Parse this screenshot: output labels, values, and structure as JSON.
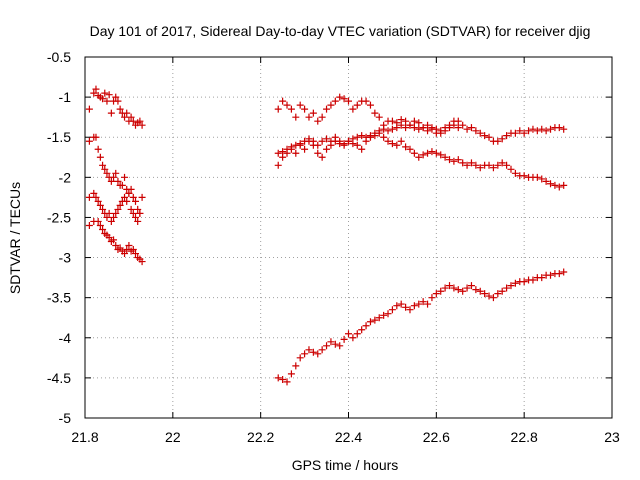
{
  "chart_data": {
    "type": "scatter",
    "title": "Day 101 of 2017, Sidereal Day-to-day VTEC variation (SDTVAR) for receiver djig",
    "xlabel": "GPS time / hours",
    "ylabel": "SDTVAR / TECUs",
    "xlim": [
      21.8,
      23
    ],
    "ylim": [
      -5,
      -0.5
    ],
    "xticks": [
      "21.8",
      "22",
      "22.2",
      "22.4",
      "22.6",
      "22.8",
      "23"
    ],
    "yticks": [
      "-0.5",
      "-1",
      "-1.5",
      "-2",
      "-2.5",
      "-3",
      "-3.5",
      "-4",
      "-4.5",
      "-5"
    ],
    "grid": true,
    "marker": "+",
    "color": "#cc0000",
    "series": [
      {
        "x": [
          21.81,
          21.82,
          21.825,
          21.83,
          21.835,
          21.84,
          21.845,
          21.85,
          21.855,
          21.86,
          21.865,
          21.87,
          21.875,
          21.88,
          21.885,
          21.89,
          21.895,
          21.9,
          21.905,
          21.91,
          21.915,
          21.92,
          21.925,
          21.93
        ],
        "y": [
          -1.15,
          -0.95,
          -0.9,
          -0.98,
          -1.0,
          -1.02,
          -0.95,
          -1.05,
          -0.97,
          -1.2,
          -1.05,
          -1.0,
          -1.05,
          -1.15,
          -1.2,
          -1.25,
          -1.2,
          -1.3,
          -1.25,
          -1.3,
          -1.35,
          -1.32,
          -1.3,
          -1.35
        ]
      },
      {
        "x": [
          21.81,
          21.82,
          21.825,
          21.83,
          21.835,
          21.84,
          21.845,
          21.85,
          21.855,
          21.86,
          21.865,
          21.87,
          21.875,
          21.88,
          21.885,
          21.89,
          21.895,
          21.9,
          21.905,
          21.91,
          21.915,
          21.92,
          21.925,
          21.93
        ],
        "y": [
          -1.55,
          -1.5,
          -1.5,
          -1.65,
          -1.75,
          -1.85,
          -1.9,
          -1.95,
          -2.0,
          -2.05,
          -2.0,
          -1.95,
          -2.05,
          -2.1,
          -2.1,
          -2.0,
          -2.15,
          -2.2,
          -2.15,
          -2.25,
          -2.3,
          -2.4,
          -2.45,
          -2.25
        ]
      },
      {
        "x": [
          21.81,
          21.82,
          21.825,
          21.83,
          21.835,
          21.84,
          21.845,
          21.85,
          21.855,
          21.86,
          21.865,
          21.87,
          21.875,
          21.88,
          21.885,
          21.89,
          21.895,
          21.9,
          21.905,
          21.91,
          21.915,
          21.92,
          21.925
        ],
        "y": [
          -2.25,
          -2.2,
          -2.25,
          -2.3,
          -2.35,
          -2.4,
          -2.45,
          -2.5,
          -2.45,
          -2.55,
          -2.5,
          -2.45,
          -2.4,
          -2.35,
          -2.3,
          -2.25,
          -2.3,
          -2.2,
          -2.4,
          -2.45,
          -2.5,
          -2.55,
          -2.45
        ]
      },
      {
        "x": [
          21.81,
          21.82,
          21.83,
          21.835,
          21.84,
          21.845,
          21.85,
          21.855,
          21.86,
          21.865,
          21.87,
          21.875,
          21.88,
          21.885,
          21.89,
          21.895,
          21.9,
          21.905,
          21.91,
          21.915,
          21.92,
          21.925,
          21.93
        ],
        "y": [
          -2.6,
          -2.55,
          -2.55,
          -2.6,
          -2.65,
          -2.7,
          -2.72,
          -2.75,
          -2.8,
          -2.78,
          -2.85,
          -2.9,
          -2.88,
          -2.92,
          -2.95,
          -2.9,
          -2.85,
          -2.92,
          -2.9,
          -2.95,
          -3.0,
          -3.02,
          -3.05
        ]
      },
      {
        "x": [
          22.24,
          22.25,
          22.26,
          22.27,
          22.28,
          22.29,
          22.3,
          22.31,
          22.32,
          22.33,
          22.34,
          22.35,
          22.36,
          22.37,
          22.38,
          22.39,
          22.4,
          22.41,
          22.42,
          22.43,
          22.44,
          22.45,
          22.46,
          22.47,
          22.48,
          22.49,
          22.5,
          22.51,
          22.52,
          22.53,
          22.54,
          22.55,
          22.56,
          22.57,
          22.58,
          22.59,
          22.6,
          22.61,
          22.62,
          22.63,
          22.64,
          22.65,
          22.66,
          22.67,
          22.68,
          22.69,
          22.7,
          22.71,
          22.72,
          22.73,
          22.74,
          22.75,
          22.76,
          22.77,
          22.78,
          22.79,
          22.8,
          22.81,
          22.82,
          22.83,
          22.84,
          22.85,
          22.86,
          22.87,
          22.88,
          22.89
        ],
        "y": [
          -1.15,
          -1.05,
          -1.1,
          -1.15,
          -1.25,
          -1.1,
          -1.15,
          -1.25,
          -1.2,
          -1.3,
          -1.25,
          -1.15,
          -1.1,
          -1.05,
          -1.0,
          -1.02,
          -1.05,
          -1.15,
          -1.1,
          -1.05,
          -1.05,
          -1.1,
          -1.2,
          -1.25,
          -1.35,
          -1.3,
          -1.3,
          -1.32,
          -1.28,
          -1.3,
          -1.35,
          -1.3,
          -1.32,
          -1.38,
          -1.42,
          -1.4,
          -1.45,
          -1.45,
          -1.42,
          -1.38,
          -1.3,
          -1.3,
          -1.35,
          -1.4,
          -1.38,
          -1.42,
          -1.45,
          -1.48,
          -1.5,
          -1.55,
          -1.55,
          -1.52,
          -1.48,
          -1.45,
          -1.45,
          -1.42,
          -1.45,
          -1.42,
          -1.4,
          -1.42,
          -1.4,
          -1.42,
          -1.4,
          -1.38,
          -1.38,
          -1.4
        ]
      },
      {
        "x": [
          22.24,
          22.25,
          22.26,
          22.27,
          22.28,
          22.29,
          22.3,
          22.31,
          22.32,
          22.33,
          22.34,
          22.35,
          22.36,
          22.37,
          22.38,
          22.39,
          22.4,
          22.41,
          22.42,
          22.43,
          22.44,
          22.45,
          22.46,
          22.47,
          22.48,
          22.49,
          22.5,
          22.51,
          22.52,
          22.53,
          22.54,
          22.55,
          22.56,
          22.57,
          22.58,
          22.59,
          22.6,
          22.61,
          22.62,
          22.63,
          22.64,
          22.65
        ],
        "y": [
          -1.7,
          -1.68,
          -1.65,
          -1.62,
          -1.6,
          -1.58,
          -1.55,
          -1.52,
          -1.55,
          -1.6,
          -1.55,
          -1.52,
          -1.55,
          -1.5,
          -1.55,
          -1.58,
          -1.55,
          -1.52,
          -1.5,
          -1.48,
          -1.5,
          -1.48,
          -1.45,
          -1.42,
          -1.4,
          -1.42,
          -1.4,
          -1.38,
          -1.35,
          -1.38,
          -1.35,
          -1.38,
          -1.4,
          -1.38,
          -1.35,
          -1.38,
          -1.4,
          -1.42,
          -1.38,
          -1.35,
          -1.35,
          -1.38
        ]
      },
      {
        "x": [
          22.24,
          22.25,
          22.26,
          22.27,
          22.28,
          22.29,
          22.3,
          22.31,
          22.32,
          22.33,
          22.34,
          22.35,
          22.36,
          22.37,
          22.38,
          22.39,
          22.4,
          22.41,
          22.42,
          22.43,
          22.44,
          22.45,
          22.46,
          22.47,
          22.48,
          22.49,
          22.5,
          22.51,
          22.52,
          22.53,
          22.54,
          22.55,
          22.56,
          22.57,
          22.58,
          22.59,
          22.6,
          22.61,
          22.62,
          22.63,
          22.64,
          22.65,
          22.66,
          22.67,
          22.68,
          22.69,
          22.7,
          22.71,
          22.72,
          22.73,
          22.74,
          22.75,
          22.76,
          22.77,
          22.78,
          22.79,
          22.8,
          22.81,
          22.82,
          22.83,
          22.84,
          22.85,
          22.86,
          22.87,
          22.88,
          22.89
        ],
        "y": [
          -1.85,
          -1.75,
          -1.7,
          -1.65,
          -1.7,
          -1.6,
          -1.65,
          -1.55,
          -1.6,
          -1.7,
          -1.75,
          -1.65,
          -1.6,
          -1.55,
          -1.58,
          -1.6,
          -1.55,
          -1.58,
          -1.6,
          -1.65,
          -1.55,
          -1.5,
          -1.48,
          -1.45,
          -1.5,
          -1.55,
          -1.58,
          -1.6,
          -1.55,
          -1.62,
          -1.65,
          -1.7,
          -1.75,
          -1.72,
          -1.7,
          -1.68,
          -1.7,
          -1.72,
          -1.75,
          -1.78,
          -1.8,
          -1.78,
          -1.82,
          -1.85,
          -1.82,
          -1.85,
          -1.88,
          -1.85,
          -1.85,
          -1.88,
          -1.85,
          -1.82,
          -1.85,
          -1.9,
          -1.95,
          -1.98,
          -1.98,
          -2.0,
          -2.0,
          -2.0,
          -2.02,
          -2.05,
          -2.08,
          -2.1,
          -2.12,
          -2.1
        ]
      },
      {
        "x": [
          22.24,
          22.25,
          22.26,
          22.27,
          22.28,
          22.29,
          22.3,
          22.31,
          22.32,
          22.33,
          22.34,
          22.35,
          22.36,
          22.37,
          22.38,
          22.39,
          22.4,
          22.41,
          22.42,
          22.43,
          22.44,
          22.45,
          22.46,
          22.47,
          22.48,
          22.49,
          22.5,
          22.51,
          22.52,
          22.53,
          22.54,
          22.55,
          22.56,
          22.57,
          22.58,
          22.59,
          22.6,
          22.61,
          22.62,
          22.63,
          22.64,
          22.65,
          22.66,
          22.67,
          22.68,
          22.69,
          22.7,
          22.71,
          22.72,
          22.73,
          22.74,
          22.75,
          22.76,
          22.77,
          22.78,
          22.79,
          22.8,
          22.81,
          22.82,
          22.83,
          22.84,
          22.85,
          22.86,
          22.87,
          22.88,
          22.89
        ],
        "y": [
          -4.5,
          -4.52,
          -4.55,
          -4.45,
          -4.35,
          -4.25,
          -4.2,
          -4.15,
          -4.18,
          -4.2,
          -4.15,
          -4.1,
          -4.05,
          -4.08,
          -4.1,
          -4.02,
          -3.95,
          -4.0,
          -3.95,
          -3.9,
          -3.85,
          -3.8,
          -3.78,
          -3.75,
          -3.72,
          -3.7,
          -3.65,
          -3.6,
          -3.58,
          -3.62,
          -3.65,
          -3.6,
          -3.58,
          -3.55,
          -3.58,
          -3.5,
          -3.45,
          -3.42,
          -3.38,
          -3.35,
          -3.38,
          -3.4,
          -3.42,
          -3.38,
          -3.35,
          -3.4,
          -3.42,
          -3.45,
          -3.48,
          -3.5,
          -3.45,
          -3.42,
          -3.38,
          -3.35,
          -3.32,
          -3.3,
          -3.3,
          -3.28,
          -3.28,
          -3.25,
          -3.25,
          -3.22,
          -3.22,
          -3.2,
          -3.2,
          -3.18
        ]
      }
    ]
  }
}
